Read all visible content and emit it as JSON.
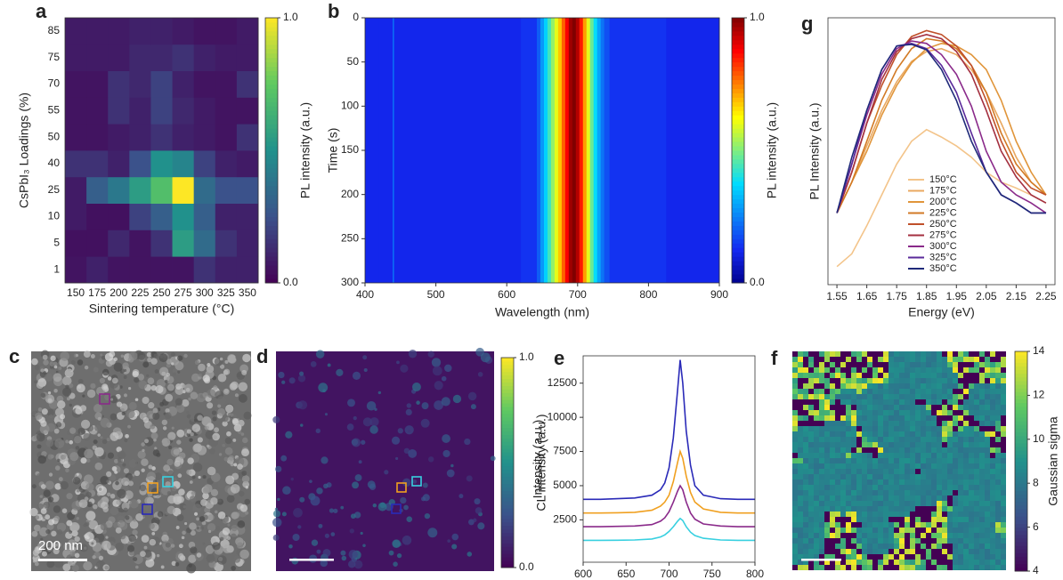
{
  "chart_data": [
    {
      "type": "heatmap",
      "panel": "a",
      "x_label": "Sintering temperature (°C)",
      "y_label": "CsPbI₃ Loadings (%)",
      "categories": [
        150,
        175,
        200,
        225,
        250,
        275,
        300,
        325,
        350
      ],
      "y_categories": [
        1,
        5,
        10,
        25,
        40,
        50,
        55,
        70,
        75,
        85
      ],
      "values": [
        [
          0.06,
          0.1,
          0.06,
          0.06,
          0.06,
          0.06,
          0.15,
          0.1,
          0.1
        ],
        [
          0.05,
          0.05,
          0.12,
          0.06,
          0.15,
          0.55,
          0.35,
          0.15,
          0.1
        ],
        [
          0.08,
          0.05,
          0.05,
          0.2,
          0.3,
          0.5,
          0.3,
          0.1,
          0.1
        ],
        [
          0.08,
          0.3,
          0.4,
          0.55,
          0.7,
          1.0,
          0.35,
          0.25,
          0.25
        ],
        [
          0.15,
          0.15,
          0.1,
          0.25,
          0.5,
          0.45,
          0.2,
          0.1,
          0.08
        ],
        [
          0.06,
          0.06,
          0.08,
          0.1,
          0.15,
          0.1,
          0.08,
          0.06,
          0.15
        ],
        [
          0.06,
          0.06,
          0.15,
          0.1,
          0.2,
          0.12,
          0.08,
          0.06,
          0.06
        ],
        [
          0.06,
          0.06,
          0.15,
          0.12,
          0.2,
          0.1,
          0.06,
          0.06,
          0.15
        ],
        [
          0.08,
          0.08,
          0.08,
          0.12,
          0.12,
          0.15,
          0.1,
          0.08,
          0.08
        ],
        [
          0.08,
          0.08,
          0.08,
          0.1,
          0.1,
          0.08,
          0.06,
          0.06,
          0.08
        ]
      ],
      "colormap": "viridis",
      "colorbar": {
        "label": "PL intensity (a.u.)",
        "lim": [
          0,
          1
        ],
        "ticks": [
          {
            "value": 0,
            "label": "0.0"
          },
          {
            "value": 1,
            "label": "1.0"
          }
        ]
      }
    },
    {
      "type": "spectral_map",
      "panel": "b",
      "x_label": "Wavelength (nm)",
      "y_label": "Time (s)",
      "x": [
        400,
        438,
        440,
        442,
        600,
        640,
        645,
        650,
        655,
        660,
        665,
        670,
        675,
        680,
        685,
        690,
        695,
        700,
        705,
        710,
        715,
        720,
        725,
        730,
        735,
        740,
        750,
        900
      ],
      "values": [
        0.12,
        0.12,
        0.22,
        0.12,
        0.12,
        0.14,
        0.2,
        0.28,
        0.36,
        0.44,
        0.52,
        0.6,
        0.68,
        0.78,
        0.88,
        0.97,
        1.0,
        0.95,
        0.85,
        0.72,
        0.6,
        0.48,
        0.38,
        0.3,
        0.23,
        0.18,
        0.14,
        0.12
      ],
      "xlim": [
        400,
        900
      ],
      "xticks": [
        400,
        500,
        600,
        700,
        800,
        900
      ],
      "ylim": [
        0,
        300
      ],
      "yticks": [
        0,
        50,
        100,
        150,
        200,
        250,
        300
      ],
      "y_reversed": true,
      "colormap": "jet",
      "colorbar": {
        "label": "PL intensity (a.u.)",
        "lim": [
          0,
          1
        ],
        "ticks": [
          {
            "value": 0,
            "label": "0.0"
          },
          {
            "value": 1,
            "label": "1.0"
          }
        ]
      }
    },
    {
      "type": "image",
      "panel": "c",
      "scale_bar": "200 nm"
    },
    {
      "type": "image",
      "panel": "d",
      "colormap": "viridis",
      "colorbar": {
        "label": "CL intensity (a.u.)",
        "lim": [
          0,
          1
        ],
        "ticks": [
          {
            "value": 0,
            "label": "0.0"
          },
          {
            "value": 1,
            "label": "1.0"
          }
        ]
      }
    },
    {
      "type": "line",
      "panel": "e",
      "x_label": "Wavelength (nm)",
      "y_label": "Intensity (a.u.)",
      "x": [
        600,
        620,
        640,
        660,
        680,
        690,
        695,
        700,
        705,
        710,
        713,
        716,
        720,
        725,
        730,
        740,
        760,
        780,
        800
      ],
      "series": [
        {
          "color": "#2a2ab8",
          "values": [
            4000,
            4000,
            4050,
            4100,
            4300,
            4700,
            5200,
            6300,
            8500,
            12000,
            14200,
            12500,
            9000,
            6500,
            5000,
            4300,
            4050,
            4000,
            4000
          ]
        },
        {
          "color": "#f0a020",
          "values": [
            3000,
            3000,
            3020,
            3050,
            3200,
            3500,
            3800,
            4300,
            5300,
            6700,
            7500,
            7000,
            5700,
            4500,
            3800,
            3300,
            3050,
            3000,
            3000
          ]
        },
        {
          "color": "#8a2a8a",
          "values": [
            2000,
            2000,
            2020,
            2050,
            2150,
            2400,
            2650,
            3100,
            3800,
            4600,
            5000,
            4700,
            3800,
            3000,
            2550,
            2200,
            2050,
            2000,
            2000
          ]
        },
        {
          "color": "#38d0e0",
          "values": [
            1000,
            1000,
            1010,
            1030,
            1100,
            1250,
            1400,
            1650,
            2000,
            2400,
            2600,
            2450,
            2000,
            1600,
            1350,
            1150,
            1030,
            1000,
            1000
          ]
        }
      ],
      "xlim": [
        600,
        800
      ],
      "xticks": [
        600,
        650,
        700,
        750,
        800
      ],
      "ylim": [
        -600,
        14500
      ],
      "yticks": [
        2500,
        5000,
        7500,
        10000,
        12500
      ]
    },
    {
      "type": "image",
      "panel": "f",
      "colormap": "viridis",
      "colorbar": {
        "label": "Gaussian sigma",
        "lim": [
          4,
          14
        ],
        "ticks": [
          4,
          6,
          8,
          10,
          12,
          14
        ]
      }
    },
    {
      "type": "line",
      "panel": "g",
      "x_label": "Energy (eV)",
      "y_label": "PL Intensity (a.u.)",
      "ylog": true,
      "legend": "lower center",
      "x": [
        1.55,
        1.6,
        1.65,
        1.7,
        1.75,
        1.8,
        1.85,
        1.9,
        1.95,
        2.0,
        2.05,
        2.1,
        2.15,
        2.2,
        2.25
      ],
      "series": [
        {
          "name": "150°C",
          "color": "#f3c48a",
          "values": [
            0.006,
            0.008,
            0.015,
            0.03,
            0.06,
            0.1,
            0.13,
            0.11,
            0.09,
            0.07,
            0.05,
            0.04,
            0.035,
            0.03,
            0.025
          ]
        },
        {
          "name": "175°C",
          "color": "#e9a860",
          "values": [
            0.02,
            0.04,
            0.09,
            0.2,
            0.38,
            0.6,
            0.75,
            0.8,
            0.7,
            0.5,
            0.3,
            0.15,
            0.07,
            0.04,
            0.03
          ]
        },
        {
          "name": "200°C",
          "color": "#e0953a",
          "values": [
            0.02,
            0.04,
            0.08,
            0.18,
            0.35,
            0.58,
            0.8,
            0.9,
            0.85,
            0.7,
            0.5,
            0.25,
            0.1,
            0.05,
            0.03
          ]
        },
        {
          "name": "225°C",
          "color": "#d27a25",
          "values": [
            0.02,
            0.04,
            0.1,
            0.25,
            0.5,
            0.8,
            1.0,
            0.95,
            0.8,
            0.55,
            0.3,
            0.12,
            0.06,
            0.04,
            0.03
          ]
        },
        {
          "name": "250°C",
          "color": "#c0502a",
          "values": [
            0.02,
            0.05,
            0.15,
            0.35,
            0.7,
            1.05,
            1.2,
            1.1,
            0.85,
            0.55,
            0.25,
            0.1,
            0.05,
            0.035,
            0.03
          ]
        },
        {
          "name": "275°C",
          "color": "#a43040",
          "values": [
            0.02,
            0.05,
            0.15,
            0.4,
            0.75,
            1.0,
            1.1,
            1.0,
            0.75,
            0.45,
            0.2,
            0.08,
            0.045,
            0.03,
            0.025
          ]
        },
        {
          "name": "300°C",
          "color": "#8a2a8a",
          "values": [
            0.02,
            0.06,
            0.18,
            0.45,
            0.8,
            0.95,
            0.9,
            0.7,
            0.45,
            0.22,
            0.08,
            0.04,
            0.03,
            0.025,
            0.02
          ]
        },
        {
          "name": "325°C",
          "color": "#5a2a9a",
          "values": [
            0.02,
            0.06,
            0.2,
            0.5,
            0.85,
            0.9,
            0.8,
            0.55,
            0.3,
            0.12,
            0.05,
            0.03,
            0.025,
            0.02,
            0.02
          ]
        },
        {
          "name": "350°C",
          "color": "#1f2a7a",
          "values": [
            0.02,
            0.07,
            0.2,
            0.5,
            0.85,
            0.88,
            0.78,
            0.5,
            0.25,
            0.1,
            0.05,
            0.03,
            0.025,
            0.02,
            0.02
          ]
        }
      ],
      "xlim": [
        1.52,
        2.28
      ],
      "xticks": [
        1.55,
        1.65,
        1.75,
        1.85,
        1.95,
        2.05,
        2.15,
        2.25
      ],
      "ylim": [
        0.004,
        1.6
      ]
    }
  ]
}
